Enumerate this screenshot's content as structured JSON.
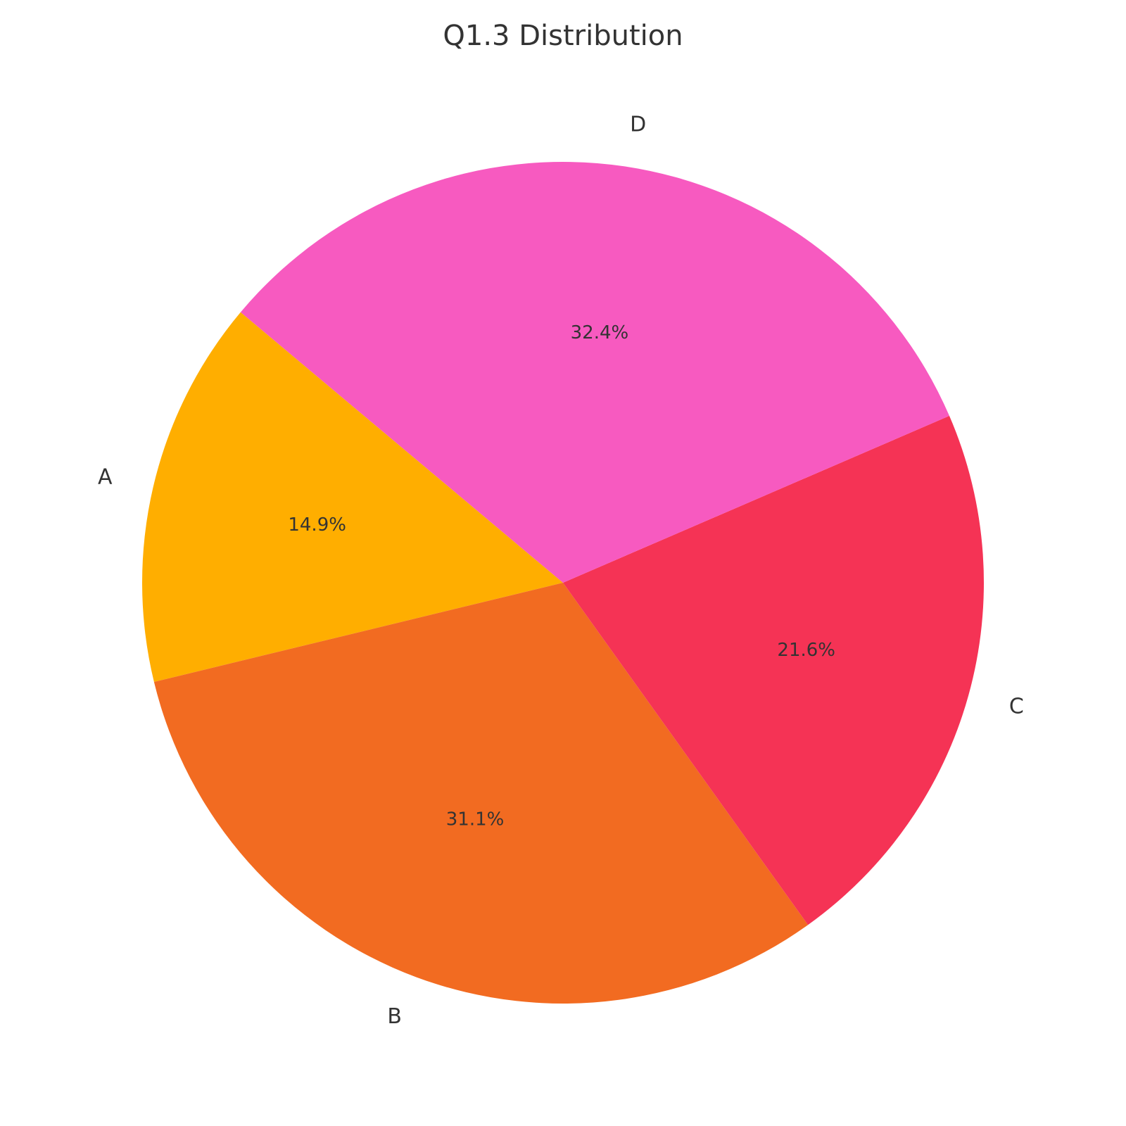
{
  "chart_data": {
    "type": "pie",
    "title": "Q1.3 Distribution",
    "start_angle_deg": 140,
    "direction": "counterclockwise",
    "slices": [
      {
        "label": "A",
        "value": 14.9,
        "pct_label": "14.9%",
        "color": "#FFAE00"
      },
      {
        "label": "B",
        "value": 31.1,
        "pct_label": "31.1%",
        "color": "#F26B21"
      },
      {
        "label": "C",
        "value": 21.6,
        "pct_label": "21.6%",
        "color": "#F53355"
      },
      {
        "label": "D",
        "value": 32.4,
        "pct_label": "32.4%",
        "color": "#F75AC0"
      }
    ]
  }
}
